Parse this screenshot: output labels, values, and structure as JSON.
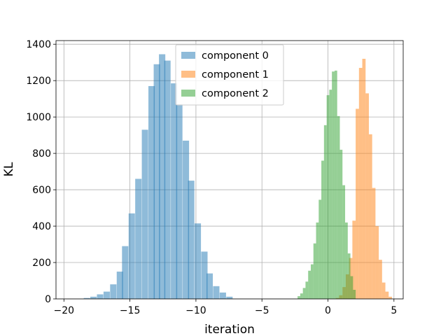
{
  "chart_data": {
    "type": "bar",
    "subtype": "histogram",
    "xlabel": "iteration",
    "ylabel": "KL",
    "xlim": [
      -20.6,
      5.7
    ],
    "ylim": [
      0,
      1420
    ],
    "xticks": [
      -20,
      -15,
      -10,
      -5,
      0,
      5
    ],
    "xtick_labels": [
      "−20",
      "−15",
      "−10",
      "−5",
      "0",
      "5"
    ],
    "yticks": [
      0,
      200,
      400,
      600,
      800,
      1000,
      1200,
      1400
    ],
    "ytick_labels": [
      "0",
      "200",
      "400",
      "600",
      "800",
      "1000",
      "1200",
      "1400"
    ],
    "grid": true,
    "legend_position": "top-center",
    "series": [
      {
        "name": "component 0",
        "color": "#1f77b4",
        "alpha": 0.5,
        "bin_width": 0.48,
        "bins": [
          [
            -18.5,
            5
          ],
          [
            -18.0,
            12
          ],
          [
            -17.5,
            25
          ],
          [
            -17.0,
            40
          ],
          [
            -16.5,
            80
          ],
          [
            -16.0,
            150
          ],
          [
            -15.6,
            290
          ],
          [
            -15.1,
            470
          ],
          [
            -14.6,
            660
          ],
          [
            -14.1,
            930
          ],
          [
            -13.6,
            1170
          ],
          [
            -13.2,
            1290
          ],
          [
            -12.8,
            1345
          ],
          [
            -12.4,
            1310
          ],
          [
            -11.9,
            1185
          ],
          [
            -11.5,
            1070
          ],
          [
            -11.0,
            870
          ],
          [
            -10.6,
            650
          ],
          [
            -10.1,
            415
          ],
          [
            -9.6,
            260
          ],
          [
            -9.2,
            140
          ],
          [
            -8.7,
            70
          ],
          [
            -8.2,
            35
          ],
          [
            -7.7,
            12
          ]
        ]
      },
      {
        "name": "component 1",
        "color": "#ff7f0e",
        "alpha": 0.5,
        "bin_width": 0.25,
        "bins": [
          [
            0.6,
            5
          ],
          [
            0.85,
            20
          ],
          [
            1.1,
            65
          ],
          [
            1.35,
            135
          ],
          [
            1.6,
            225
          ],
          [
            1.85,
            430
          ],
          [
            2.1,
            1045
          ],
          [
            2.35,
            1270
          ],
          [
            2.6,
            1320
          ],
          [
            2.85,
            1130
          ],
          [
            3.1,
            905
          ],
          [
            3.35,
            610
          ],
          [
            3.6,
            400
          ],
          [
            3.85,
            215
          ],
          [
            4.1,
            90
          ],
          [
            4.35,
            40
          ],
          [
            4.6,
            12
          ]
        ]
      },
      {
        "name": "component 2",
        "color": "#2ca02c",
        "alpha": 0.5,
        "bin_width": 0.2,
        "bins": [
          [
            -2.3,
            15
          ],
          [
            -2.1,
            30
          ],
          [
            -1.9,
            60
          ],
          [
            -1.7,
            95
          ],
          [
            -1.5,
            155
          ],
          [
            -1.3,
            190
          ],
          [
            -1.1,
            305
          ],
          [
            -0.9,
            420
          ],
          [
            -0.7,
            545
          ],
          [
            -0.5,
            760
          ],
          [
            -0.3,
            955
          ],
          [
            -0.1,
            1120
          ],
          [
            0.1,
            1150
          ],
          [
            0.3,
            1250
          ],
          [
            0.5,
            1255
          ],
          [
            0.7,
            1005
          ],
          [
            0.9,
            820
          ],
          [
            1.1,
            625
          ],
          [
            1.3,
            420
          ],
          [
            1.5,
            250
          ],
          [
            1.7,
            125
          ],
          [
            1.9,
            50
          ]
        ]
      }
    ]
  }
}
